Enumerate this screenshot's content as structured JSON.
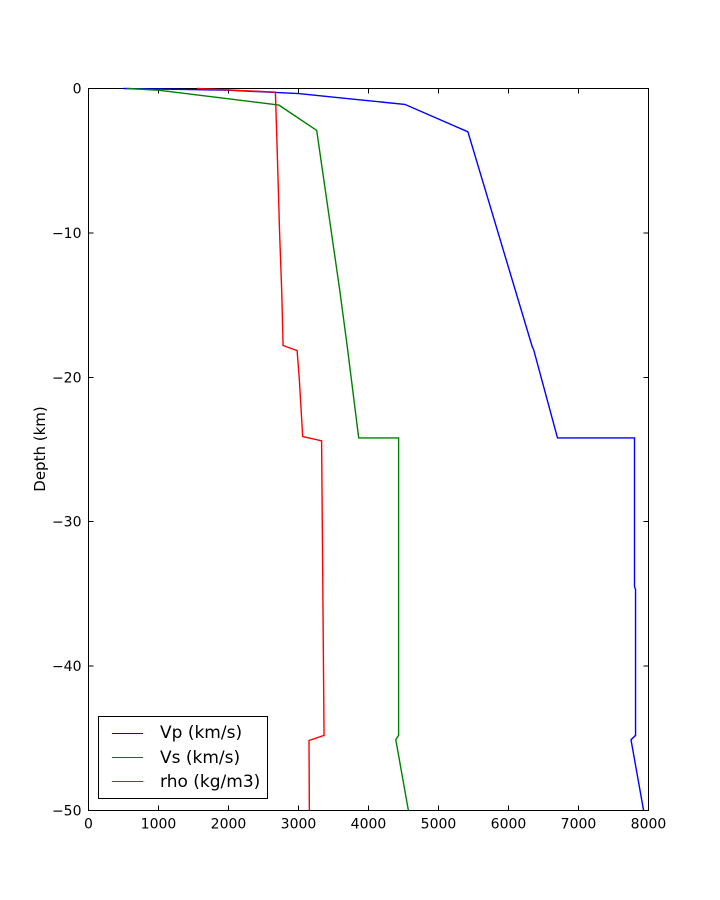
{
  "chart_data": {
    "type": "line",
    "title": "",
    "xlabel": "",
    "ylabel": "Depth (km)",
    "xlim": [
      0,
      8000
    ],
    "ylim": [
      -50,
      0
    ],
    "x_ticks": [
      0,
      1000,
      2000,
      3000,
      4000,
      5000,
      6000,
      7000,
      8000
    ],
    "y_ticks": [
      0,
      -10,
      -20,
      -30,
      -40,
      -50
    ],
    "grid": false,
    "legend_position": "lower left",
    "frame_color": "#000000",
    "background_color": "#ffffff",
    "series": [
      {
        "name": "Vp (km/s)",
        "color": "#0000ff",
        "points": [
          [
            500,
            0
          ],
          [
            2000,
            -0.12
          ],
          [
            3000,
            -0.35
          ],
          [
            3800,
            -0.75
          ],
          [
            4520,
            -1.1
          ],
          [
            5420,
            -3.0
          ],
          [
            6340,
            -17.9
          ],
          [
            6360,
            -18.1
          ],
          [
            6700,
            -24.2
          ],
          [
            7800,
            -24.2
          ],
          [
            7800,
            -34.5
          ],
          [
            7815,
            -34.7
          ],
          [
            7815,
            -44.8
          ],
          [
            7750,
            -45.1
          ],
          [
            7930,
            -50
          ]
        ]
      },
      {
        "name": "Vs (km/s)",
        "color": "#008000",
        "points": [
          [
            550,
            0
          ],
          [
            1000,
            -0.12
          ],
          [
            1900,
            -0.65
          ],
          [
            2720,
            -1.15
          ],
          [
            3260,
            -2.9
          ],
          [
            3590,
            -14.0
          ],
          [
            3700,
            -18.0
          ],
          [
            3860,
            -24.2
          ],
          [
            4430,
            -24.2
          ],
          [
            4430,
            -44.8
          ],
          [
            4390,
            -45.1
          ],
          [
            4570,
            -50
          ]
        ]
      },
      {
        "name": "rho (kg/m3)",
        "color": "#ff0000",
        "points": [
          [
            1550,
            0
          ],
          [
            2670,
            -0.25
          ],
          [
            2700,
            -5.0
          ],
          [
            2730,
            -10.0
          ],
          [
            2760,
            -14.0
          ],
          [
            2780,
            -17.8
          ],
          [
            2980,
            -18.15
          ],
          [
            3010,
            -20.0
          ],
          [
            3060,
            -24.1
          ],
          [
            3330,
            -24.4
          ],
          [
            3365,
            -44.8
          ],
          [
            3150,
            -45.15
          ],
          [
            3155,
            -50
          ]
        ]
      }
    ]
  }
}
